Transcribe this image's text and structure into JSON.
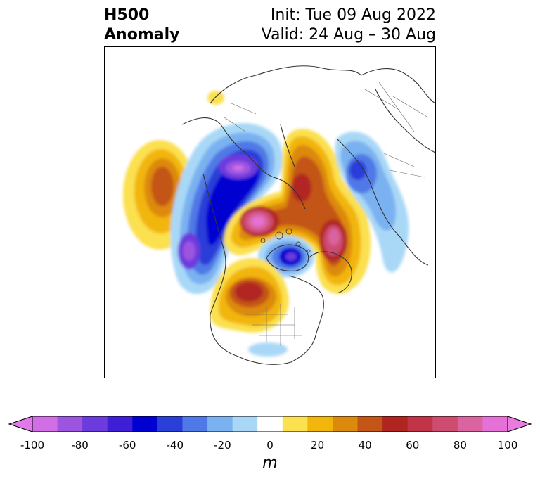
{
  "header": {
    "title_line1": "H500",
    "title_line2": "Anomaly",
    "init": "Init: Tue 09 Aug 2022",
    "valid": "Valid: 24 Aug – 30 Aug"
  },
  "colorbar": {
    "units": "m",
    "ticks": [
      "-100",
      "-80",
      "-60",
      "-40",
      "-20",
      "0",
      "20",
      "40",
      "60",
      "80",
      "100"
    ],
    "bins": [
      -100,
      -90,
      -80,
      -70,
      -60,
      -50,
      -40,
      -30,
      -20,
      -10,
      10,
      20,
      30,
      40,
      50,
      60,
      70,
      80,
      90,
      100
    ],
    "colors": [
      "#d16ee6",
      "#9d55e0",
      "#6c3bdd",
      "#3e1fd6",
      "#0000d0",
      "#2a3ed8",
      "#4f79e6",
      "#7ab1f0",
      "#a9d8f7",
      "#ffffff",
      "#fbe04f",
      "#f2b50c",
      "#dc8a0e",
      "#c35516",
      "#b12521",
      "#c13447",
      "#cd4c70",
      "#d964a0",
      "#e571d6"
    ],
    "under_color": "#e07ae8",
    "over_color": "#e97ae0"
  },
  "map": {
    "projection": "north-polar-stereographic",
    "field": "500 hPa geopotential height anomaly"
  }
}
